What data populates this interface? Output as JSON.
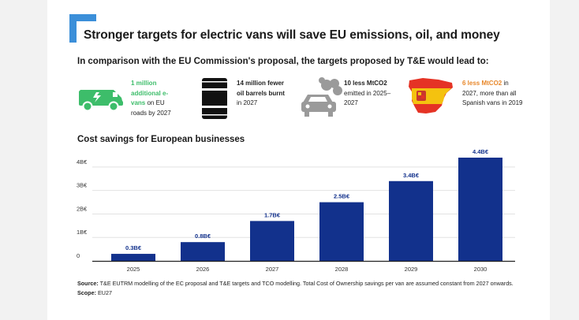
{
  "header": {
    "title": "Stronger targets for electric vans will save EU emissions, oil, and money",
    "subtitle": "In comparison with the EU Commission's proposal, the targets proposed by T&E would lead to:"
  },
  "stats": [
    {
      "icon": "electric-van-icon",
      "highlight": "1 million additional e-vans",
      "rest": " on EU roads by 2027",
      "color": "#3dbd6a"
    },
    {
      "icon": "oil-barrel-icon",
      "highlight": "14 million fewer oil barrels burnt",
      "rest": " in 2027",
      "color": "#111111"
    },
    {
      "icon": "polluting-car-icon",
      "highlight": "10 less MtCO2",
      "rest": " emitted in 2025–2027",
      "color": "#111111"
    },
    {
      "icon": "spain-map-flag-icon",
      "highlight": "6 less MtCO2",
      "rest": " in 2027, more than all Spanish vans in 2019",
      "color": "#e8882c"
    }
  ],
  "chart_data": {
    "type": "bar",
    "title": "Cost savings for European businesses",
    "categories": [
      "2025",
      "2026",
      "2027",
      "2028",
      "2029",
      "2030"
    ],
    "values": [
      0.3,
      0.8,
      1.7,
      2.5,
      3.4,
      4.4
    ],
    "data_labels": [
      "0.3B€",
      "0.8B€",
      "1.7B€",
      "2.5B€",
      "3.4B€",
      "4.4B€"
    ],
    "y_ticks": [
      0,
      1,
      2,
      3,
      4
    ],
    "y_tick_labels": [
      "0",
      "1B€",
      "2B€",
      "3B€",
      "4B€"
    ],
    "ylim": [
      0,
      4.4
    ],
    "xlabel": "",
    "ylabel": "",
    "bar_color": "#12318c",
    "grid": true,
    "legend": "none"
  },
  "source": {
    "source_label": "Source:",
    "source_text": " T&E EUTRM modelling of the EC proposal and T&E targets and TCO modelling. Total Cost of Ownership savings per van are assumed constant from 2027 onwards. ",
    "scope_label": "Scope:",
    "scope_text": " EU27"
  },
  "colors": {
    "accent_blue": "#3b8fd9",
    "bar": "#12318c",
    "green": "#3dbd6a",
    "orange": "#e8882c"
  }
}
